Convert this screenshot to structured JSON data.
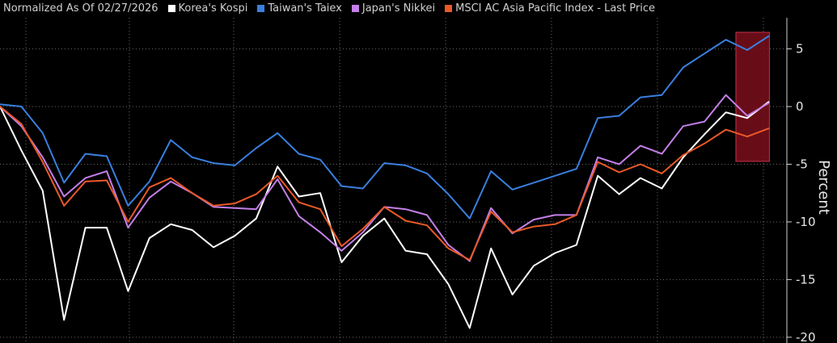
{
  "header": {
    "note": "Normalized As Of 02/27/2026"
  },
  "colors": {
    "background": "#000000",
    "grid": "#6a6a6a",
    "highlight_fill": "#7a0f1c",
    "highlight_stroke": "#c2334a"
  },
  "chart_data": {
    "type": "line",
    "ylabel": "Percent",
    "ylim": [
      -20.5,
      7.7
    ],
    "y_ticks": [
      5,
      0,
      -5,
      -10,
      -15,
      -20
    ],
    "y_tick_labels": [
      "5",
      "0",
      "-5",
      "-10",
      "-15",
      "-20"
    ],
    "x_axis_labels_visible": false,
    "highlight_band": {
      "from_index": 35,
      "to_index": 36
    },
    "series": [
      {
        "name": "Korea's Kospi",
        "color": "#ffffff",
        "values": [
          0,
          -3.8,
          -7.3,
          -18.5,
          -10.5,
          -10.5,
          -16,
          -11.4,
          -10.2,
          -10.7,
          -12.2,
          -11.2,
          -9.7,
          -5.2,
          -7.8,
          -7.5,
          -13.5,
          -11.2,
          -9.7,
          -12.5,
          -12.8,
          -15.4,
          -19.2,
          -12.3,
          -16.3,
          -13.8,
          -12.7,
          -12,
          -6,
          -7.6,
          -6.2,
          -7.1,
          -4.4,
          -2.4,
          -0.5,
          -1,
          0.4
        ]
      },
      {
        "name": "Taiwan's Taiex",
        "color": "#3a7fde",
        "values": [
          0.2,
          0,
          -2.3,
          -6.6,
          -4.1,
          -4.3,
          -8.6,
          -6.5,
          -2.9,
          -4.4,
          -4.9,
          -5.1,
          -3.6,
          -2.3,
          -4.1,
          -4.6,
          -6.9,
          -7.1,
          -4.9,
          -5.1,
          -5.8,
          -7.6,
          -9.7,
          -5.6,
          -7.2,
          -6.6,
          -6,
          -5.4,
          -1,
          -0.8,
          0.8,
          1,
          3.4,
          4.6,
          5.8,
          4.9,
          6.1
        ]
      },
      {
        "name": "Japan's Nikkei",
        "color": "#c47fe8",
        "values": [
          0,
          -1.7,
          -4.4,
          -7.8,
          -6.2,
          -5.6,
          -10.5,
          -7.9,
          -6.5,
          -7.5,
          -8.7,
          -8.8,
          -8.9,
          -6.3,
          -9.5,
          -10.9,
          -12.5,
          -10.9,
          -8.7,
          -8.9,
          -9.4,
          -12,
          -13.4,
          -8.8,
          -11,
          -9.8,
          -9.4,
          -9.4,
          -4.4,
          -5,
          -3.4,
          -4.1,
          -1.7,
          -1.3,
          1,
          -0.8,
          0.3
        ]
      },
      {
        "name": "MSCI AC Asia Pacific Index - Last Price",
        "color": "#ea5a28",
        "values": [
          0,
          -1.5,
          -4.8,
          -8.6,
          -6.5,
          -6.4,
          -10,
          -7,
          -6.2,
          -7.5,
          -8.6,
          -8.4,
          -7.6,
          -6,
          -8.3,
          -8.9,
          -12.1,
          -10.6,
          -8.7,
          -9.9,
          -10.3,
          -12.3,
          -13.3,
          -9.1,
          -10.9,
          -10.4,
          -10.2,
          -9.4,
          -4.8,
          -5.7,
          -5,
          -5.8,
          -4.2,
          -3.2,
          -2,
          -2.6,
          -1.9
        ]
      }
    ]
  }
}
